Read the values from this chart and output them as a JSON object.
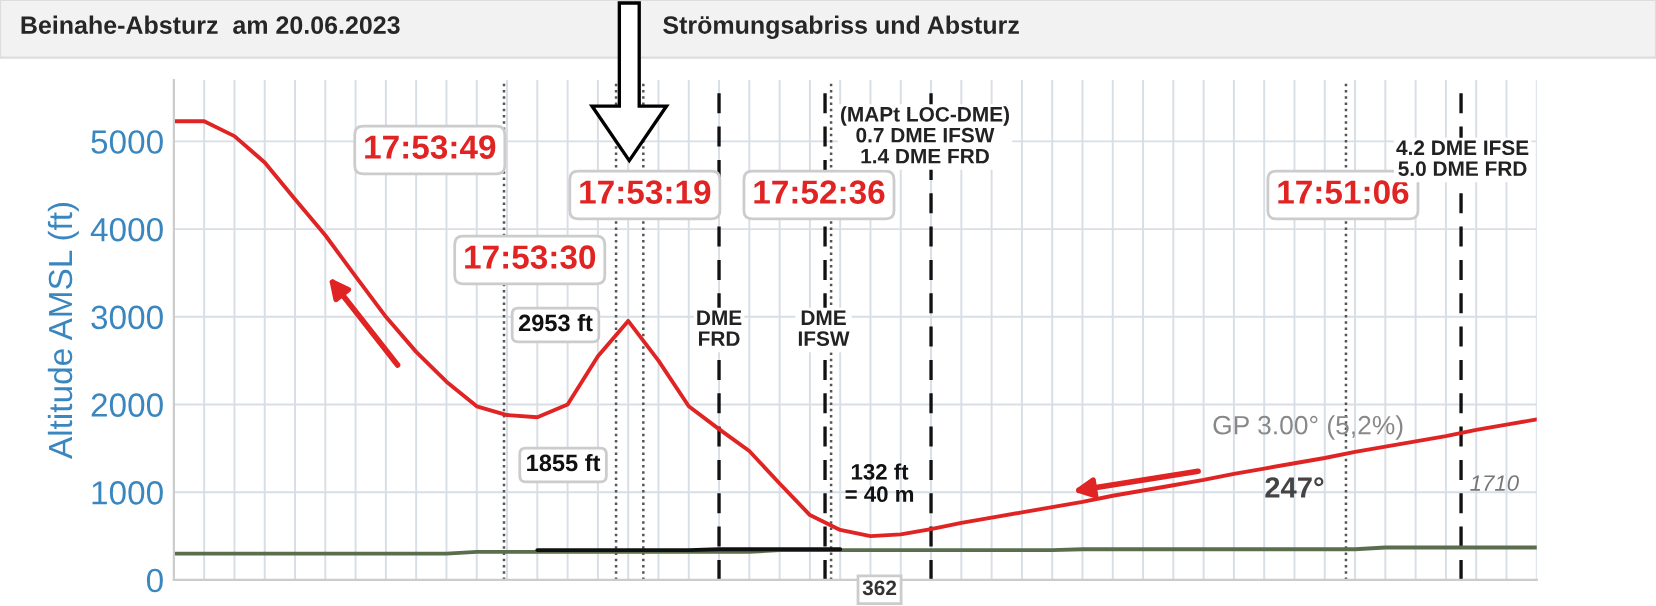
{
  "chart_data": {
    "type": "line",
    "title": "Beinahe-Absturz  am 20.06.2023",
    "subtitle": "Strömungsabriss und Absturz",
    "ylabel": "Altitude AMSL (ft)",
    "categories": [
      null,
      null,
      null,
      null,
      null,
      null,
      null,
      null,
      null,
      null,
      null,
      null,
      null,
      null,
      null,
      null,
      null,
      null,
      null,
      null,
      null,
      null,
      null,
      null,
      null,
      null,
      null,
      null,
      null,
      null,
      null,
      null,
      null,
      null,
      null,
      null,
      null,
      null,
      null,
      null,
      null,
      null,
      null,
      null,
      null,
      null
    ],
    "ylim": [
      0,
      5700
    ],
    "yticks": [
      0,
      1000,
      2000,
      3000,
      4000,
      5000
    ],
    "tick_labels": "y",
    "grid": true,
    "legend": false,
    "series": [
      {
        "color": "#e02424",
        "values": [
          5230,
          5230,
          5060,
          4760,
          4340,
          3930,
          3460,
          3000,
          2600,
          2260,
          1980,
          1880,
          1855,
          2000,
          2550,
          2953,
          2500,
          1980,
          1720,
          1470,
          1100,
          740,
          570,
          500,
          520,
          580,
          650,
          710,
          770,
          830,
          890,
          960,
          1020,
          1080,
          1140,
          1210,
          1270,
          1330,
          1390,
          1460,
          1520,
          1580,
          1640,
          1710,
          1770,
          1830
        ]
      },
      {
        "color": "#5a6e4e",
        "values": [
          300,
          300,
          300,
          300,
          300,
          300,
          300,
          300,
          300,
          300,
          320,
          320,
          320,
          320,
          320,
          320,
          320,
          320,
          320,
          320,
          340,
          340,
          340,
          340,
          340,
          340,
          340,
          340,
          340,
          340,
          350,
          350,
          350,
          350,
          350,
          350,
          350,
          350,
          350,
          350,
          370,
          370,
          370,
          370,
          370,
          370
        ]
      },
      {
        "color": "#111111",
        "values": [
          null,
          null,
          null,
          null,
          null,
          null,
          null,
          null,
          null,
          null,
          null,
          null,
          340,
          340,
          340,
          340,
          340,
          340,
          350,
          350,
          350,
          350,
          350,
          null,
          null,
          null,
          null,
          null,
          null,
          null,
          null,
          null,
          null,
          null,
          null,
          null,
          null,
          null,
          null,
          null,
          null,
          null,
          null,
          null,
          null,
          null
        ]
      }
    ],
    "annotations": [
      "17:53:49",
      "17:53:30",
      "17:53:19",
      "17:52:36",
      "17:51:06",
      "DME\nFRD",
      "DME\nIFSW",
      "(MAPt LOC-DME)\n0.7 DME IFSW\n1.4 DME FRD",
      "4.2 DME IFSE\n5.0 DME FRD",
      "2953 ft",
      "1855 ft",
      "132 ft\n= 40 m",
      "362",
      "GP 3.00° (5,2%)",
      "247°",
      "1710"
    ]
  }
}
